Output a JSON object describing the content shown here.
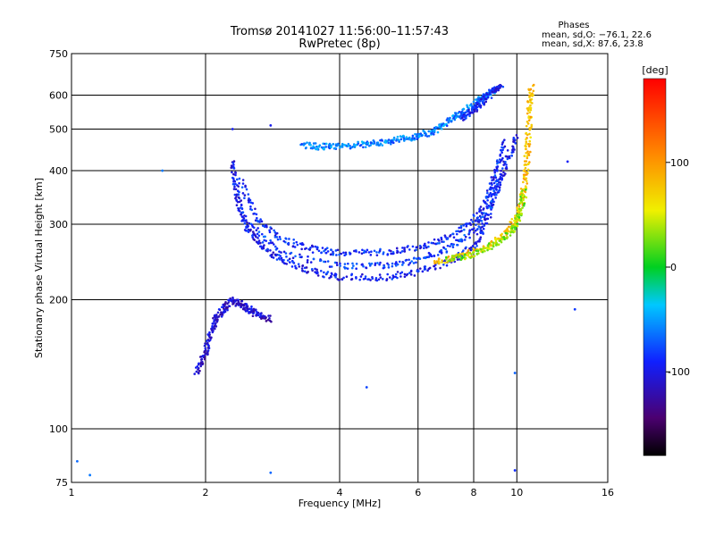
{
  "chart_data": {
    "type": "scatter",
    "title": "Tromsø 20141027 11:56:00–11:57:43",
    "subtitle": "RwPretec (8p)",
    "xlabel": "Frequency [MHz]",
    "ylabel": "Stationary phase Virtual Height [km]",
    "x_scale": "log",
    "y_scale": "log",
    "xlim": [
      1,
      16
    ],
    "ylim": [
      75,
      750
    ],
    "x_ticks": [
      1,
      2,
      4,
      6,
      8,
      10,
      16
    ],
    "y_ticks": [
      75,
      100,
      200,
      300,
      400,
      500,
      600,
      750
    ],
    "grid": true,
    "phases_info": {
      "heading": "Phases",
      "line_o": "mean, sd,O: −76.1, 22.6",
      "line_x": "mean, sd,X:  87.6, 23.8"
    },
    "colorbar": {
      "label": "[deg]",
      "range": [
        -180,
        180
      ],
      "ticks": [
        100,
        0,
        -100
      ]
    },
    "traces": [
      {
        "name_hint": "low_branch",
        "phase": -110,
        "points": [
          [
            1.9,
            135
          ],
          [
            2.0,
            150
          ],
          [
            2.05,
            165
          ],
          [
            2.1,
            180
          ],
          [
            2.2,
            190
          ],
          [
            2.3,
            200
          ],
          [
            2.4,
            195
          ],
          [
            2.5,
            190
          ],
          [
            2.6,
            185
          ],
          [
            2.8,
            180
          ]
        ]
      },
      {
        "name_hint": "o_trace_main",
        "phase": -95,
        "points": [
          [
            2.3,
            420
          ],
          [
            2.35,
            360
          ],
          [
            2.4,
            320
          ],
          [
            2.5,
            290
          ],
          [
            2.7,
            265
          ],
          [
            3.0,
            245
          ],
          [
            3.5,
            232
          ],
          [
            4.0,
            226
          ],
          [
            5.0,
            225
          ],
          [
            6.0,
            232
          ],
          [
            7.0,
            245
          ],
          [
            8.0,
            265
          ],
          [
            8.5,
            300
          ],
          [
            9.0,
            360
          ],
          [
            9.5,
            420
          ],
          [
            10.0,
            480
          ]
        ]
      },
      {
        "name_hint": "o_trace_upper",
        "phase": -90,
        "points": [
          [
            2.4,
            380
          ],
          [
            2.6,
            310
          ],
          [
            3.0,
            275
          ],
          [
            3.5,
            262
          ],
          [
            4.0,
            258
          ],
          [
            5.0,
            258
          ],
          [
            6.0,
            265
          ],
          [
            7.0,
            280
          ],
          [
            8.0,
            305
          ],
          [
            8.6,
            350
          ],
          [
            9.0,
            400
          ],
          [
            9.4,
            470
          ]
        ]
      },
      {
        "name_hint": "o_trace_mid",
        "phase": -85,
        "points": [
          [
            2.5,
            300
          ],
          [
            3.0,
            255
          ],
          [
            4.0,
            240
          ],
          [
            5.0,
            240
          ],
          [
            6.0,
            248
          ],
          [
            7.0,
            262
          ],
          [
            8.0,
            290
          ],
          [
            8.8,
            340
          ],
          [
            9.2,
            390
          ]
        ]
      },
      {
        "name_hint": "x_trace",
        "phase": 80,
        "points": [
          [
            6.5,
            245
          ],
          [
            7.5,
            252
          ],
          [
            8.5,
            265
          ],
          [
            9.5,
            285
          ],
          [
            10.0,
            310
          ],
          [
            10.3,
            350
          ],
          [
            10.5,
            400
          ],
          [
            10.6,
            470
          ],
          [
            10.7,
            560
          ],
          [
            10.8,
            630
          ]
        ]
      },
      {
        "name_hint": "x_trace_green",
        "phase": 30,
        "points": [
          [
            7.0,
            248
          ],
          [
            8.0,
            255
          ],
          [
            9.0,
            270
          ],
          [
            9.8,
            290
          ],
          [
            10.2,
            320
          ],
          [
            10.4,
            360
          ]
        ]
      },
      {
        "name_hint": "upper_echo",
        "phase": -60,
        "points": [
          [
            3.3,
            460
          ],
          [
            3.6,
            455
          ],
          [
            4.0,
            455
          ],
          [
            4.5,
            460
          ],
          [
            5.0,
            465
          ],
          [
            5.5,
            475
          ],
          [
            6.0,
            480
          ],
          [
            6.5,
            495
          ],
          [
            7.0,
            520
          ],
          [
            7.5,
            545
          ],
          [
            8.0,
            570
          ],
          [
            8.5,
            600
          ],
          [
            9.0,
            620
          ]
        ]
      },
      {
        "name_hint": "upper_echo_b",
        "phase": -95,
        "points": [
          [
            7.5,
            530
          ],
          [
            8.0,
            555
          ],
          [
            8.4,
            580
          ],
          [
            8.8,
            610
          ],
          [
            9.2,
            630
          ]
        ]
      },
      {
        "name_hint": "scatter",
        "phase": -80,
        "points": [
          [
            1.03,
            84
          ],
          [
            1.1,
            78
          ],
          [
            2.3,
            500
          ],
          [
            2.8,
            510
          ],
          [
            4.6,
            125
          ],
          [
            9.9,
            80
          ],
          [
            13.5,
            190
          ],
          [
            9.9,
            135
          ],
          [
            13.0,
            420
          ],
          [
            1.6,
            400
          ],
          [
            2.8,
            79
          ]
        ]
      }
    ]
  }
}
